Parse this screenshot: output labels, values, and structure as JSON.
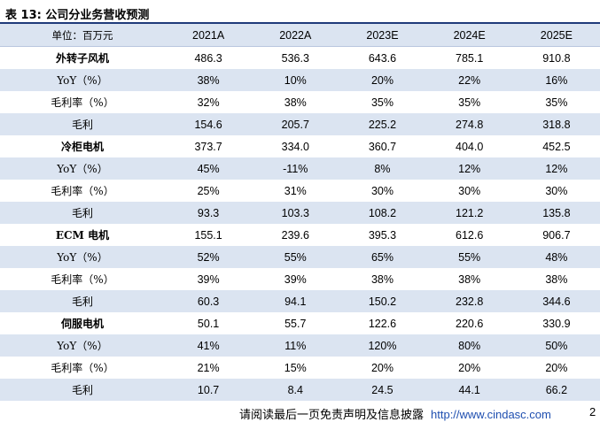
{
  "title": "表 13:  公司分业务营收预测",
  "table": {
    "unit_label": "单位：百万元",
    "columns": [
      "2021A",
      "2022A",
      "2023E",
      "2024E",
      "2025E"
    ],
    "rows": [
      {
        "label": "外转子风机",
        "values": [
          "486.3",
          "536.3",
          "643.6",
          "785.1",
          "910.8"
        ],
        "segment": true
      },
      {
        "label": "YoY（%）",
        "values": [
          "38%",
          "10%",
          "20%",
          "22%",
          "16%"
        ]
      },
      {
        "label": "毛利率（%）",
        "values": [
          "32%",
          "38%",
          "35%",
          "35%",
          "35%"
        ]
      },
      {
        "label": "毛利",
        "values": [
          "154.6",
          "205.7",
          "225.2",
          "274.8",
          "318.8"
        ]
      },
      {
        "label": "冷柜电机",
        "values": [
          "373.7",
          "334.0",
          "360.7",
          "404.0",
          "452.5"
        ],
        "segment": true
      },
      {
        "label": "YoY（%）",
        "values": [
          "45%",
          "-11%",
          "8%",
          "12%",
          "12%"
        ]
      },
      {
        "label": "毛利率（%）",
        "values": [
          "25%",
          "31%",
          "30%",
          "30%",
          "30%"
        ]
      },
      {
        "label": "毛利",
        "values": [
          "93.3",
          "103.3",
          "108.2",
          "121.2",
          "135.8"
        ]
      },
      {
        "label": "ECM 电机",
        "values": [
          "155.1",
          "239.6",
          "395.3",
          "612.6",
          "906.7"
        ],
        "segment": true
      },
      {
        "label": "YoY（%）",
        "values": [
          "52%",
          "55%",
          "65%",
          "55%",
          "48%"
        ]
      },
      {
        "label": "毛利率（%）",
        "values": [
          "39%",
          "39%",
          "38%",
          "38%",
          "38%"
        ]
      },
      {
        "label": "毛利",
        "values": [
          "60.3",
          "94.1",
          "150.2",
          "232.8",
          "344.6"
        ]
      },
      {
        "label": "伺服电机",
        "values": [
          "50.1",
          "55.7",
          "122.6",
          "220.6",
          "330.9"
        ],
        "segment": true
      },
      {
        "label": "YoY（%）",
        "values": [
          "41%",
          "11%",
          "120%",
          "80%",
          "50%"
        ]
      },
      {
        "label": "毛利率（%）",
        "values": [
          "21%",
          "15%",
          "20%",
          "20%",
          "20%"
        ]
      },
      {
        "label": "毛利",
        "values": [
          "10.7",
          "8.4",
          "24.5",
          "44.1",
          "66.2"
        ]
      }
    ]
  },
  "footer": {
    "text": "请阅读最后一页免责声明及信息披露",
    "url": "http://www.cindasc.com",
    "page": "2"
  },
  "colors": {
    "row_shade": "#dbe4f1",
    "title_rule": "#1f3a7a",
    "link": "#1f4fb0"
  }
}
